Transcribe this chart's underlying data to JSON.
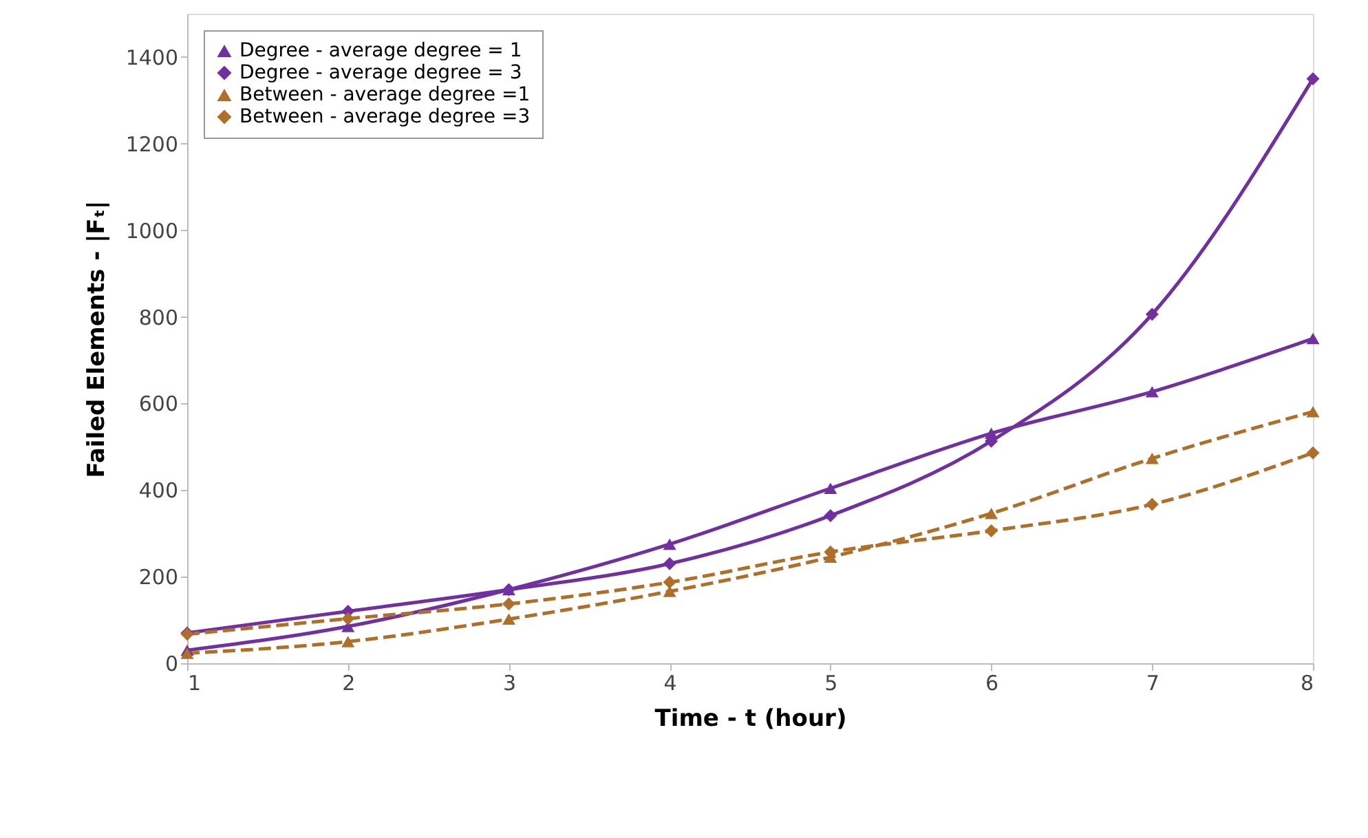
{
  "chart_data": {
    "type": "line",
    "xlabel": "Time - t (hour)",
    "ylabel": "Failed Elements - |Fₜ|",
    "x": [
      1,
      2,
      3,
      4,
      5,
      6,
      7,
      8
    ],
    "series": [
      {
        "name": "Degree - average degree = 1",
        "color": "#7030a0",
        "marker": "triangle",
        "line_style": "solid",
        "values": [
          30,
          85,
          170,
          275,
          404,
          531,
          627,
          750
        ]
      },
      {
        "name": "Degree - average degree = 3",
        "color": "#7030a0",
        "marker": "diamond",
        "line_style": "solid",
        "values": [
          70,
          120,
          170,
          230,
          341,
          513,
          806,
          1350
        ]
      },
      {
        "name": "Between - average degree =1",
        "color": "#ae6f2a",
        "marker": "triangle",
        "line_style": "dashed",
        "values": [
          23,
          50,
          102,
          166,
          245,
          346,
          473,
          581
        ]
      },
      {
        "name": "Between - average degree =3",
        "color": "#ae6f2a",
        "marker": "diamond",
        "line_style": "dashed",
        "values": [
          67,
          103,
          137,
          187,
          257,
          306,
          367,
          486
        ]
      }
    ],
    "xlim": [
      1,
      8
    ],
    "xticks": [
      1,
      2,
      3,
      4,
      5,
      6,
      7,
      8
    ],
    "ylim": [
      0,
      1500
    ],
    "yticks": [
      0,
      200,
      400,
      600,
      800,
      1000,
      1200,
      1400
    ],
    "grid": false,
    "legend": "top left"
  }
}
